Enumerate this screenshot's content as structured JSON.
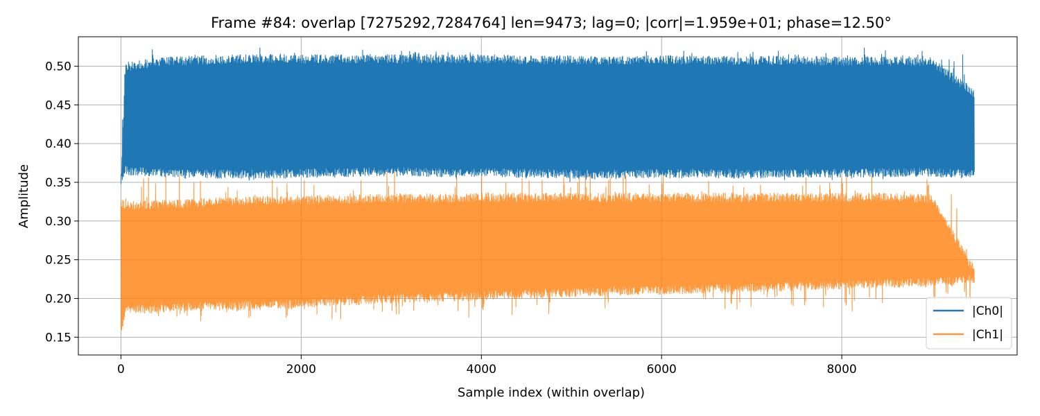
{
  "chart_data": {
    "type": "line",
    "title": "Frame #84: overlap [7275292,7284764]  len=9473; lag=0; |corr|=1.959e+01; phase=12.50°",
    "xlabel": "Sample index (within overlap)",
    "ylabel": "Amplitude",
    "xlim": [
      -473,
      9946
    ],
    "ylim": [
      0.127,
      0.538
    ],
    "xticks": [
      0,
      2000,
      4000,
      6000,
      8000
    ],
    "xtick_labels": [
      "0",
      "2000",
      "4000",
      "6000",
      "8000"
    ],
    "yticks": [
      0.15,
      0.2,
      0.25,
      0.3,
      0.35,
      0.4,
      0.45,
      0.5
    ],
    "ytick_labels": [
      "0.15",
      "0.20",
      "0.25",
      "0.30",
      "0.35",
      "0.40",
      "0.45",
      "0.50"
    ],
    "grid": true,
    "legend_position": "lower-right",
    "n_samples": 9473,
    "series": [
      {
        "name": "|Ch0|",
        "color": "#1f77b4",
        "opacity": 1.0,
        "envelope_x": [
          0,
          50,
          500,
          1000,
          1500,
          2000,
          2500,
          3000,
          3500,
          4000,
          4500,
          5000,
          5500,
          6000,
          6500,
          7000,
          7500,
          8000,
          8500,
          9000,
          9472
        ],
        "upper": [
          0.35,
          0.505,
          0.512,
          0.514,
          0.515,
          0.515,
          0.515,
          0.515,
          0.515,
          0.515,
          0.514,
          0.514,
          0.513,
          0.514,
          0.513,
          0.513,
          0.513,
          0.512,
          0.512,
          0.511,
          0.47
        ],
        "lower": [
          0.35,
          0.36,
          0.356,
          0.355,
          0.355,
          0.356,
          0.357,
          0.358,
          0.357,
          0.357,
          0.356,
          0.355,
          0.355,
          0.356,
          0.356,
          0.355,
          0.356,
          0.356,
          0.357,
          0.357,
          0.355
        ],
        "peak_max": 0.525,
        "trough_min": 0.345
      },
      {
        "name": "|Ch1|",
        "color": "#ff7f0e",
        "opacity": 0.8,
        "envelope_x": [
          0,
          50,
          500,
          1000,
          1500,
          2000,
          2500,
          3000,
          3500,
          4000,
          4500,
          5000,
          5500,
          6000,
          6500,
          7000,
          7500,
          8000,
          8500,
          9000,
          9472
        ],
        "upper": [
          0.33,
          0.325,
          0.327,
          0.33,
          0.332,
          0.333,
          0.334,
          0.335,
          0.335,
          0.336,
          0.336,
          0.336,
          0.336,
          0.336,
          0.336,
          0.336,
          0.336,
          0.336,
          0.336,
          0.335,
          0.24
        ],
        "lower": [
          0.15,
          0.18,
          0.182,
          0.184,
          0.186,
          0.188,
          0.191,
          0.194,
          0.196,
          0.198,
          0.2,
          0.202,
          0.204,
          0.205,
          0.207,
          0.208,
          0.21,
          0.212,
          0.214,
          0.215,
          0.22
        ],
        "peak_max": 0.365,
        "trough_min": 0.15
      }
    ]
  }
}
